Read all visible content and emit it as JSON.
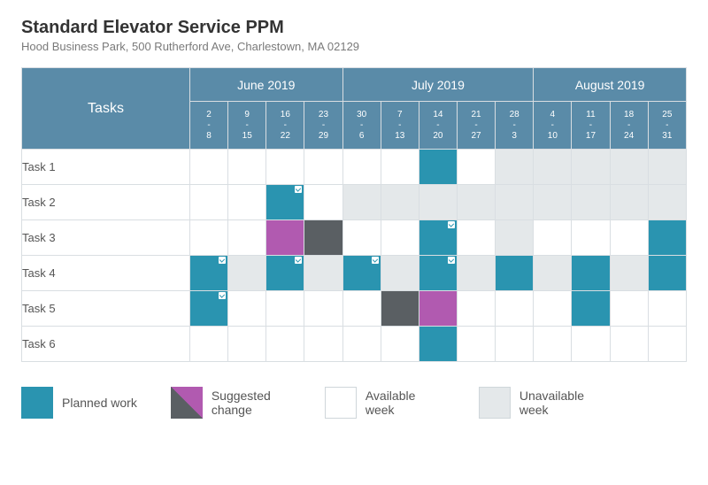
{
  "header": {
    "title": "Standard Elevator Service PPM",
    "subtitle": "Hood Business Park, 500 Rutherford Ave, Charlestown, MA 02129"
  },
  "colors": {
    "header_bg": "#5a8ba8",
    "planned": "#2a94b0",
    "suggested_upper": "#b15ab0",
    "suggested_lower": "#5a5f63",
    "available": "#ffffff",
    "unavailable": "#e4e8ea",
    "grid_border": "#d9dee2"
  },
  "table": {
    "tasks_header": "Tasks",
    "months": [
      {
        "label": "June 2019",
        "span": 4
      },
      {
        "label": "July 2019",
        "span": 5
      },
      {
        "label": "August 2019",
        "span": 4
      }
    ],
    "weeks": [
      {
        "label": "2\n-\n8"
      },
      {
        "label": "9\n-\n15"
      },
      {
        "label": "16\n-\n22"
      },
      {
        "label": "23\n-\n29"
      },
      {
        "label": "30\n-\n6"
      },
      {
        "label": "7\n-\n13"
      },
      {
        "label": "14\n-\n20"
      },
      {
        "label": "21\n-\n27"
      },
      {
        "label": "28\n-\n3"
      },
      {
        "label": "4\n-\n10"
      },
      {
        "label": "11\n-\n17"
      },
      {
        "label": "18\n-\n24"
      },
      {
        "label": "25\n-\n31"
      }
    ],
    "rows": [
      {
        "label": "Task 1",
        "cells": [
          {
            "s": "avail"
          },
          {
            "s": "avail"
          },
          {
            "s": "avail"
          },
          {
            "s": "avail"
          },
          {
            "s": "avail"
          },
          {
            "s": "avail"
          },
          {
            "s": "planned"
          },
          {
            "s": "avail"
          },
          {
            "s": "unavail"
          },
          {
            "s": "unavail"
          },
          {
            "s": "unavail"
          },
          {
            "s": "unavail"
          },
          {
            "s": "unavail"
          }
        ]
      },
      {
        "label": "Task 2",
        "cells": [
          {
            "s": "avail"
          },
          {
            "s": "avail"
          },
          {
            "s": "planned",
            "check": true
          },
          {
            "s": "avail"
          },
          {
            "s": "unavail"
          },
          {
            "s": "unavail"
          },
          {
            "s": "unavail"
          },
          {
            "s": "unavail"
          },
          {
            "s": "unavail"
          },
          {
            "s": "unavail"
          },
          {
            "s": "unavail"
          },
          {
            "s": "unavail"
          },
          {
            "s": "unavail"
          }
        ]
      },
      {
        "label": "Task 3",
        "cells": [
          {
            "s": "avail"
          },
          {
            "s": "avail"
          },
          {
            "s": "magenta"
          },
          {
            "s": "dark"
          },
          {
            "s": "avail"
          },
          {
            "s": "avail"
          },
          {
            "s": "planned",
            "check": true
          },
          {
            "s": "avail"
          },
          {
            "s": "unavail"
          },
          {
            "s": "avail"
          },
          {
            "s": "avail"
          },
          {
            "s": "avail"
          },
          {
            "s": "planned"
          }
        ]
      },
      {
        "label": "Task 4",
        "cells": [
          {
            "s": "planned",
            "check": true
          },
          {
            "s": "unavail"
          },
          {
            "s": "planned",
            "check": true
          },
          {
            "s": "unavail"
          },
          {
            "s": "planned",
            "check": true
          },
          {
            "s": "unavail"
          },
          {
            "s": "planned",
            "check": true
          },
          {
            "s": "unavail"
          },
          {
            "s": "planned"
          },
          {
            "s": "unavail"
          },
          {
            "s": "planned"
          },
          {
            "s": "unavail"
          },
          {
            "s": "planned"
          }
        ]
      },
      {
        "label": "Task 5",
        "cells": [
          {
            "s": "planned",
            "check": true
          },
          {
            "s": "avail"
          },
          {
            "s": "avail"
          },
          {
            "s": "avail"
          },
          {
            "s": "avail"
          },
          {
            "s": "dark"
          },
          {
            "s": "magenta"
          },
          {
            "s": "avail"
          },
          {
            "s": "avail"
          },
          {
            "s": "avail"
          },
          {
            "s": "planned"
          },
          {
            "s": "avail"
          },
          {
            "s": "avail"
          }
        ]
      },
      {
        "label": "Task 6",
        "cells": [
          {
            "s": "avail"
          },
          {
            "s": "avail"
          },
          {
            "s": "avail"
          },
          {
            "s": "avail"
          },
          {
            "s": "avail"
          },
          {
            "s": "avail"
          },
          {
            "s": "planned"
          },
          {
            "s": "avail"
          },
          {
            "s": "avail"
          },
          {
            "s": "avail"
          },
          {
            "s": "avail"
          },
          {
            "s": "avail"
          },
          {
            "s": "avail"
          }
        ]
      }
    ]
  },
  "legend": {
    "planned": "Planned work",
    "suggested": "Suggested change",
    "available": "Available week",
    "unavailable": "Unavailable week"
  }
}
